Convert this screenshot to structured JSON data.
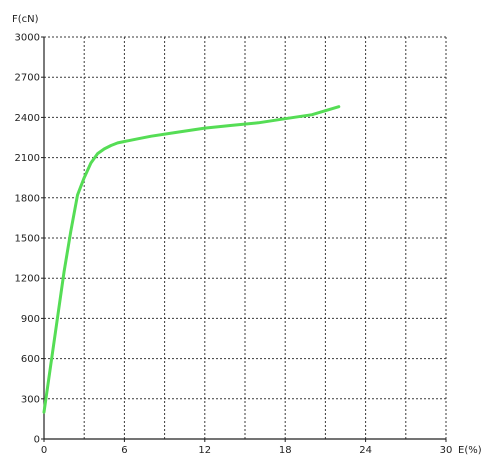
{
  "chart_data": {
    "type": "line",
    "title": "",
    "xlabel": "E(%)",
    "ylabel": "F(cN)",
    "xlim": [
      0,
      30
    ],
    "ylim": [
      0,
      3000
    ],
    "x_ticks": [
      0,
      6,
      12,
      18,
      24,
      30
    ],
    "y_ticks": [
      0,
      300,
      600,
      900,
      1200,
      1500,
      1800,
      2100,
      2400,
      2700,
      3000
    ],
    "x_minor_step": 3,
    "grid": true,
    "grid_style": "dashed",
    "series": [
      {
        "color": "#55dd55",
        "x": [
          0,
          0.5,
          1.0,
          1.5,
          2.0,
          2.5,
          3.0,
          3.5,
          4.0,
          4.5,
          5.0,
          5.5,
          6.0,
          7.0,
          8.0,
          10.0,
          12.0,
          14.0,
          16.0,
          18.0,
          20.0,
          21.0,
          22.0
        ],
        "y": [
          200,
          550,
          900,
          1250,
          1550,
          1820,
          1950,
          2060,
          2130,
          2165,
          2190,
          2210,
          2220,
          2240,
          2260,
          2290,
          2320,
          2340,
          2360,
          2390,
          2420,
          2450,
          2480
        ]
      }
    ]
  }
}
